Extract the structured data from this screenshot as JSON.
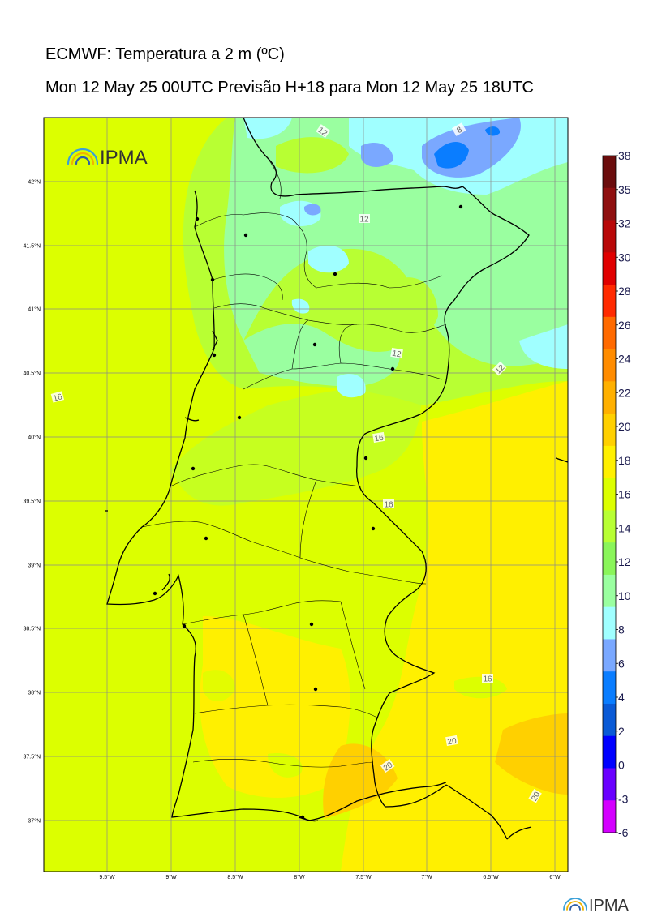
{
  "header": {
    "title": "ECMWF: Temperatura a 2 m (ºC)",
    "subtitle": "Mon 12 May 25 00UTC Previsão H+18 para Mon 12 May 25 18UTC"
  },
  "logo_text": "IPMA",
  "footer_logo_text": "IPMA",
  "axes": {
    "lat_labels": [
      "42°N",
      "41.5°N",
      "41°N",
      "40.5°N",
      "40°N",
      "39.5°N",
      "39°N",
      "38.5°N",
      "38°N",
      "37.5°N",
      "37°N"
    ],
    "lon_labels": [
      "9.5°W",
      "9°W",
      "8.5°W",
      "8°W",
      "7.5°W",
      "7°W",
      "6.5°W",
      "6°W"
    ]
  },
  "colorbar": {
    "labels": [
      "38",
      "35",
      "32",
      "30",
      "28",
      "26",
      "24",
      "22",
      "20",
      "18",
      "16",
      "14",
      "12",
      "10",
      "8",
      "6",
      "4",
      "2",
      "0",
      "-3",
      "-6"
    ],
    "colors": [
      "#6b0d0d",
      "#8f1010",
      "#b80808",
      "#e00000",
      "#ff2a00",
      "#ff6a00",
      "#ff8c00",
      "#ffb000",
      "#ffd000",
      "#fff000",
      "#dcff00",
      "#b8ff33",
      "#8af55a",
      "#9affa0",
      "#a0ffff",
      "#7aa8ff",
      "#0a7dff",
      "#0a5ad6",
      "#0000ff",
      "#6a00ff",
      "#d400ff"
    ]
  },
  "contour_labels": [
    "12",
    "12",
    "12",
    "8",
    "12",
    "16",
    "16",
    "16",
    "16",
    "20",
    "20",
    "20"
  ],
  "colors": {
    "sea_bg": "#dcff00",
    "cold_bg": "#b8ff33",
    "warm_bg": "#fff000",
    "grid": "#8a8a8a"
  }
}
